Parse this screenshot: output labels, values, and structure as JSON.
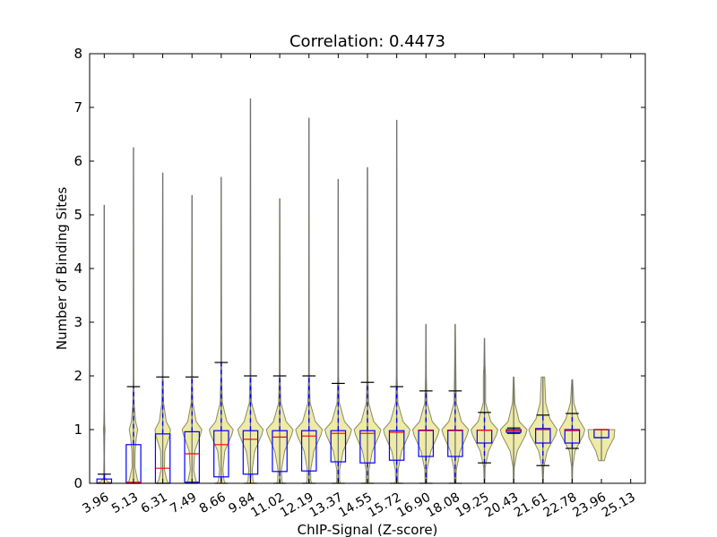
{
  "chart_data": {
    "type": "violin-box",
    "title": "Correlation: 0.4473",
    "xlabel": "ChIP-Signal (Z-score)",
    "ylabel": "Number of Binding Sites",
    "ylim": [
      0,
      8
    ],
    "yticks": [
      0,
      1,
      2,
      3,
      4,
      5,
      6,
      7,
      8
    ],
    "grid": false,
    "categories": [
      "3.96",
      "5.13",
      "6.31",
      "7.49",
      "8.66",
      "9.84",
      "11.02",
      "12.19",
      "13.37",
      "14.55",
      "15.72",
      "16.90",
      "18.08",
      "19.25",
      "20.43",
      "21.61",
      "22.78",
      "23.96",
      "25.13"
    ],
    "box_stats": [
      {
        "q1": 0.0,
        "median": 0.0,
        "q3": 0.08,
        "whisker_low": 0,
        "whisker_high": 0.17,
        "max": 5.18
      },
      {
        "q1": 0.0,
        "median": 0.02,
        "q3": 0.72,
        "whisker_low": 0,
        "whisker_high": 1.8,
        "max": 6.25
      },
      {
        "q1": 0.0,
        "median": 0.28,
        "q3": 0.92,
        "whisker_low": 0,
        "whisker_high": 1.98,
        "max": 5.78
      },
      {
        "q1": 0.02,
        "median": 0.55,
        "q3": 0.96,
        "whisker_low": 0,
        "whisker_high": 1.98,
        "max": 5.36
      },
      {
        "q1": 0.12,
        "median": 0.72,
        "q3": 0.98,
        "whisker_low": 0,
        "whisker_high": 2.25,
        "max": 5.7
      },
      {
        "q1": 0.17,
        "median": 0.82,
        "q3": 0.98,
        "whisker_low": 0,
        "whisker_high": 2.0,
        "max": 7.16
      },
      {
        "q1": 0.22,
        "median": 0.86,
        "q3": 0.98,
        "whisker_low": 0,
        "whisker_high": 2.0,
        "max": 5.3
      },
      {
        "q1": 0.23,
        "median": 0.88,
        "q3": 0.98,
        "whisker_low": 0,
        "whisker_high": 2.0,
        "max": 6.8
      },
      {
        "q1": 0.4,
        "median": 0.93,
        "q3": 0.98,
        "whisker_low": 0,
        "whisker_high": 1.86,
        "max": 5.66
      },
      {
        "q1": 0.38,
        "median": 0.93,
        "q3": 0.98,
        "whisker_low": 0,
        "whisker_high": 1.88,
        "max": 5.88
      },
      {
        "q1": 0.43,
        "median": 0.95,
        "q3": 0.98,
        "whisker_low": 0,
        "whisker_high": 1.8,
        "max": 6.76
      },
      {
        "q1": 0.5,
        "median": 0.98,
        "q3": 0.99,
        "whisker_low": 0,
        "whisker_high": 1.72,
        "max": 2.96
      },
      {
        "q1": 0.5,
        "median": 0.98,
        "q3": 0.99,
        "whisker_low": 0,
        "whisker_high": 1.72,
        "max": 2.96
      },
      {
        "q1": 0.75,
        "median": 0.99,
        "q3": 0.99,
        "whisker_low": 0.38,
        "whisker_high": 1.32,
        "max": 2.7
      },
      {
        "q1": 0.95,
        "median": 0.98,
        "q3": 1.0,
        "whisker_low": 0.93,
        "whisker_high": 1.03,
        "max": 1.98
      },
      {
        "q1": 0.75,
        "median": 1.0,
        "q3": 1.02,
        "whisker_low": 0.33,
        "whisker_high": 1.27,
        "max": 1.98
      },
      {
        "q1": 0.75,
        "median": 0.98,
        "q3": 1.0,
        "whisker_low": 0.65,
        "whisker_high": 1.3,
        "max": 1.93
      },
      {
        "q1": 0.85,
        "median": 1.0,
        "q3": 1.0,
        "whisker_low": 0.85,
        "whisker_high": 1.0,
        "max": 1.0
      },
      null
    ],
    "density_profiles": [
      {
        "min": 0,
        "max": 5.18,
        "profile": [
          [
            0,
            0.6
          ],
          [
            0.03,
            0.25
          ],
          [
            0.1,
            0.04
          ],
          [
            0.5,
            0.02
          ],
          [
            0.9,
            0.04
          ],
          [
            1.0,
            0.06
          ],
          [
            1.1,
            0.03
          ],
          [
            1.5,
            0.01
          ],
          [
            5.18,
            0.01
          ]
        ]
      },
      {
        "min": 0,
        "max": 6.25,
        "profile": [
          [
            0,
            0.5
          ],
          [
            0.05,
            0.3
          ],
          [
            0.3,
            0.1
          ],
          [
            0.6,
            0.12
          ],
          [
            0.85,
            0.2
          ],
          [
            1.0,
            0.3
          ],
          [
            1.15,
            0.15
          ],
          [
            1.5,
            0.04
          ],
          [
            2.0,
            0.02
          ],
          [
            6.25,
            0.01
          ]
        ]
      },
      {
        "min": 0,
        "max": 5.78,
        "profile": [
          [
            0,
            0.42
          ],
          [
            0.05,
            0.3
          ],
          [
            0.25,
            0.12
          ],
          [
            0.6,
            0.15
          ],
          [
            0.9,
            0.5
          ],
          [
            1.0,
            0.55
          ],
          [
            1.15,
            0.25
          ],
          [
            1.5,
            0.06
          ],
          [
            2.0,
            0.03
          ],
          [
            5.78,
            0.01
          ]
        ]
      },
      {
        "min": 0,
        "max": 5.36,
        "profile": [
          [
            0,
            0.38
          ],
          [
            0.05,
            0.28
          ],
          [
            0.25,
            0.12
          ],
          [
            0.6,
            0.2
          ],
          [
            0.9,
            0.6
          ],
          [
            1.0,
            0.7
          ],
          [
            1.15,
            0.3
          ],
          [
            1.5,
            0.06
          ],
          [
            2.0,
            0.03
          ],
          [
            5.36,
            0.01
          ]
        ]
      },
      {
        "min": 0,
        "max": 5.7,
        "profile": [
          [
            0,
            0.3
          ],
          [
            0.05,
            0.2
          ],
          [
            0.25,
            0.12
          ],
          [
            0.6,
            0.25
          ],
          [
            0.9,
            0.75
          ],
          [
            1.0,
            0.85
          ],
          [
            1.15,
            0.4
          ],
          [
            1.5,
            0.08
          ],
          [
            2.0,
            0.03
          ],
          [
            5.7,
            0.01
          ]
        ]
      },
      {
        "min": 0,
        "max": 7.16,
        "profile": [
          [
            0,
            0.25
          ],
          [
            0.05,
            0.18
          ],
          [
            0.25,
            0.12
          ],
          [
            0.6,
            0.3
          ],
          [
            0.9,
            0.8
          ],
          [
            1.0,
            0.9
          ],
          [
            1.15,
            0.45
          ],
          [
            1.5,
            0.08
          ],
          [
            2.0,
            0.03
          ],
          [
            7.16,
            0.01
          ]
        ]
      },
      {
        "min": 0,
        "max": 5.3,
        "profile": [
          [
            0,
            0.22
          ],
          [
            0.05,
            0.15
          ],
          [
            0.25,
            0.12
          ],
          [
            0.6,
            0.35
          ],
          [
            0.9,
            0.85
          ],
          [
            1.0,
            0.95
          ],
          [
            1.15,
            0.45
          ],
          [
            1.5,
            0.08
          ],
          [
            2.0,
            0.03
          ],
          [
            5.3,
            0.01
          ]
        ]
      },
      {
        "min": 0,
        "max": 6.8,
        "profile": [
          [
            0,
            0.2
          ],
          [
            0.05,
            0.13
          ],
          [
            0.25,
            0.12
          ],
          [
            0.6,
            0.35
          ],
          [
            0.9,
            0.85
          ],
          [
            1.0,
            0.95
          ],
          [
            1.15,
            0.45
          ],
          [
            1.5,
            0.08
          ],
          [
            2.0,
            0.03
          ],
          [
            6.8,
            0.01
          ]
        ]
      },
      {
        "min": 0,
        "max": 5.66,
        "profile": [
          [
            0,
            0.15
          ],
          [
            0.05,
            0.1
          ],
          [
            0.25,
            0.1
          ],
          [
            0.6,
            0.35
          ],
          [
            0.9,
            0.85
          ],
          [
            1.0,
            0.95
          ],
          [
            1.15,
            0.45
          ],
          [
            1.5,
            0.08
          ],
          [
            2.0,
            0.03
          ],
          [
            5.66,
            0.01
          ]
        ]
      },
      {
        "min": 0,
        "max": 5.88,
        "profile": [
          [
            0,
            0.15
          ],
          [
            0.05,
            0.1
          ],
          [
            0.25,
            0.1
          ],
          [
            0.6,
            0.35
          ],
          [
            0.9,
            0.85
          ],
          [
            1.0,
            0.95
          ],
          [
            1.15,
            0.45
          ],
          [
            1.5,
            0.08
          ],
          [
            2.0,
            0.03
          ],
          [
            5.88,
            0.01
          ]
        ]
      },
      {
        "min": 0,
        "max": 6.76,
        "profile": [
          [
            0,
            0.12
          ],
          [
            0.05,
            0.08
          ],
          [
            0.25,
            0.1
          ],
          [
            0.6,
            0.35
          ],
          [
            0.9,
            0.85
          ],
          [
            1.0,
            0.95
          ],
          [
            1.15,
            0.45
          ],
          [
            1.5,
            0.08
          ],
          [
            2.0,
            0.03
          ],
          [
            6.76,
            0.01
          ]
        ]
      },
      {
        "min": 0,
        "max": 2.96,
        "profile": [
          [
            0,
            0.06
          ],
          [
            0.25,
            0.08
          ],
          [
            0.6,
            0.35
          ],
          [
            0.9,
            0.85
          ],
          [
            1.0,
            0.95
          ],
          [
            1.15,
            0.45
          ],
          [
            1.5,
            0.08
          ],
          [
            2.0,
            0.03
          ],
          [
            2.96,
            0.01
          ]
        ]
      },
      {
        "min": 0,
        "max": 2.96,
        "profile": [
          [
            0,
            0.06
          ],
          [
            0.25,
            0.08
          ],
          [
            0.6,
            0.35
          ],
          [
            0.9,
            0.85
          ],
          [
            1.0,
            0.95
          ],
          [
            1.15,
            0.45
          ],
          [
            1.5,
            0.08
          ],
          [
            2.0,
            0.05
          ],
          [
            2.96,
            0.01
          ]
        ]
      },
      {
        "min": 0,
        "max": 2.7,
        "profile": [
          [
            0,
            0.03
          ],
          [
            0.3,
            0.05
          ],
          [
            0.6,
            0.3
          ],
          [
            0.9,
            0.85
          ],
          [
            1.0,
            0.95
          ],
          [
            1.15,
            0.45
          ],
          [
            1.5,
            0.08
          ],
          [
            2.0,
            0.08
          ],
          [
            2.2,
            0.04
          ],
          [
            2.7,
            0.01
          ]
        ]
      },
      {
        "min": 0,
        "max": 1.98,
        "profile": [
          [
            0,
            0.02
          ],
          [
            0.3,
            0.04
          ],
          [
            0.6,
            0.25
          ],
          [
            0.9,
            0.85
          ],
          [
            1.0,
            0.95
          ],
          [
            1.15,
            0.4
          ],
          [
            1.5,
            0.08
          ],
          [
            1.98,
            0.02
          ]
        ]
      },
      {
        "min": 0,
        "max": 1.98,
        "profile": [
          [
            0,
            0.02
          ],
          [
            0.3,
            0.06
          ],
          [
            0.6,
            0.3
          ],
          [
            0.9,
            0.9
          ],
          [
            1.0,
            1.0
          ],
          [
            1.2,
            0.5
          ],
          [
            1.5,
            0.2
          ],
          [
            1.98,
            0.12
          ]
        ]
      },
      {
        "min": 0,
        "max": 1.93,
        "profile": [
          [
            0,
            0.02
          ],
          [
            0.3,
            0.04
          ],
          [
            0.6,
            0.2
          ],
          [
            0.9,
            0.8
          ],
          [
            1.0,
            0.9
          ],
          [
            1.2,
            0.45
          ],
          [
            1.5,
            0.12
          ],
          [
            1.93,
            0.03
          ]
        ]
      },
      {
        "min": 0.42,
        "max": 1.0,
        "profile": [
          [
            0.42,
            0.2
          ],
          [
            0.6,
            0.4
          ],
          [
            0.85,
            0.9
          ],
          [
            1.0,
            0.95
          ]
        ]
      },
      null
    ],
    "colors": {
      "violin_fill": "#eeeaa8",
      "violin_stroke": "#8c8c60",
      "box": "#0000ff",
      "median": "#ff0000",
      "whisker": "#0000ff",
      "cap": "#000000",
      "max_line": "#707070"
    }
  }
}
